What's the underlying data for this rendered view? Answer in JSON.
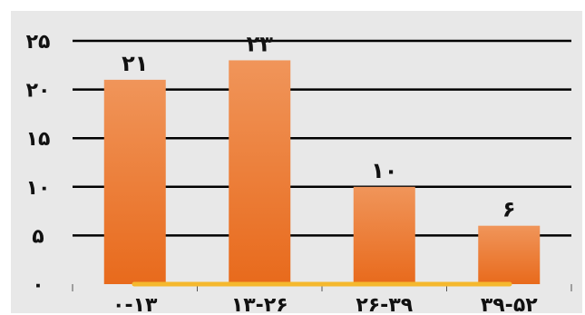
{
  "chart_data": {
    "type": "bar",
    "title": "",
    "xlabel": "",
    "ylabel": "",
    "ylim": [
      0,
      25
    ],
    "grid": true,
    "legend": "none",
    "categories": [
      "۰-۱۳",
      "۱۳-۲۶",
      "۲۶-۳۹",
      "۳۹-۵۲"
    ],
    "values": [
      21,
      23,
      10,
      6
    ],
    "data_labels": [
      "۲۱",
      "۲۳",
      "۱۰",
      "۶"
    ],
    "y_ticks": [
      0,
      5,
      10,
      15,
      20,
      25
    ],
    "y_tick_labels": [
      "۰",
      "۵",
      "۱۰",
      "۱۵",
      "۲۰",
      "۲۵"
    ],
    "colors": {
      "background": "#e8e8e8",
      "bar_top": "#f0955a",
      "bar_bottom": "#e86a1c",
      "baseline_highlight": "#f5b82e",
      "gridline": "#000000"
    }
  }
}
